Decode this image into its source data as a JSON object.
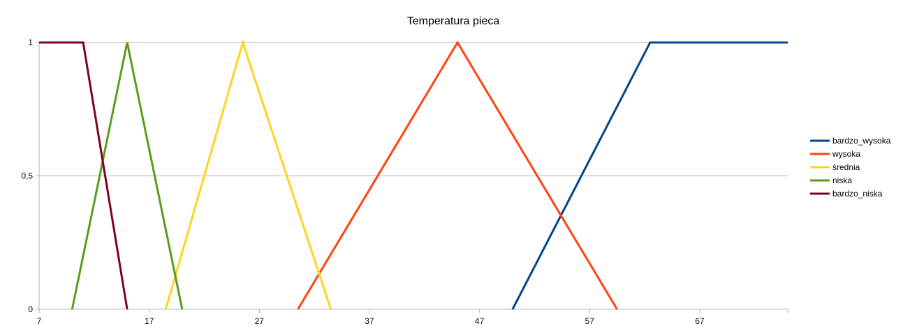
{
  "chart_data": {
    "type": "line",
    "title": "Temperatura pieca",
    "xlabel": "",
    "ylabel": "",
    "xlim": [
      7,
      75
    ],
    "ylim": [
      0,
      1
    ],
    "x_ticks": [
      7,
      17,
      27,
      37,
      47,
      57,
      67
    ],
    "y_ticks": [
      0,
      0.5,
      1
    ],
    "y_tick_labels": [
      "0",
      "0,5",
      "1"
    ],
    "grid": true,
    "legend_position": "right",
    "series": [
      {
        "name": "bardzo_wysoka",
        "color": "#004586",
        "x": [
          50,
          62.5,
          75
        ],
        "y": [
          0,
          1,
          1
        ]
      },
      {
        "name": "wysoka",
        "color": "#ff420e",
        "x": [
          30.5,
          45,
          59.5
        ],
        "y": [
          0,
          1,
          0
        ]
      },
      {
        "name": "średnia",
        "color": "#ffd320",
        "x": [
          18.5,
          25.5,
          33.5
        ],
        "y": [
          0,
          1,
          0
        ]
      },
      {
        "name": "niska",
        "color": "#579d1c",
        "x": [
          10,
          15,
          20
        ],
        "y": [
          0,
          1,
          0
        ]
      },
      {
        "name": "bardzo_niska",
        "color": "#7e0021",
        "x": [
          7,
          11,
          15
        ],
        "y": [
          1,
          1,
          0
        ]
      }
    ]
  }
}
